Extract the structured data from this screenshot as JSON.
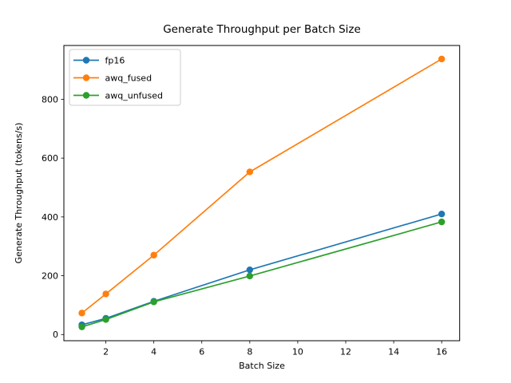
{
  "figure": {
    "background": "#ffffff",
    "text_color": "#000000",
    "axis_color": "#000000",
    "legend_border_color": "#cccccc"
  },
  "chart_data": {
    "type": "line",
    "title": "Generate Throughput per Batch Size",
    "xlabel": "Batch Size",
    "ylabel": "Generate Throughput (tokens/s)",
    "x": [
      1,
      2,
      4,
      8,
      16
    ],
    "series": [
      {
        "name": "fp16",
        "color": "#1f77b4",
        "marker": "o",
        "values": [
          33,
          55,
          113,
          220,
          410
        ]
      },
      {
        "name": "awq_fused",
        "color": "#ff7f0e",
        "marker": "o",
        "values": [
          73,
          138,
          270,
          553,
          937
        ]
      },
      {
        "name": "awq_unfused",
        "color": "#2ca02c",
        "marker": "o",
        "values": [
          26,
          51,
          111,
          199,
          383
        ]
      }
    ],
    "xticks": [
      2,
      4,
      6,
      8,
      10,
      12,
      14,
      16
    ],
    "yticks": [
      0,
      200,
      400,
      600,
      800
    ],
    "xlim": [
      0.25,
      16.75
    ],
    "ylim": [
      -21,
      983
    ],
    "grid": false,
    "legend": {
      "position": "upper left",
      "entries": [
        "fp16",
        "awq_fused",
        "awq_unfused"
      ]
    }
  }
}
